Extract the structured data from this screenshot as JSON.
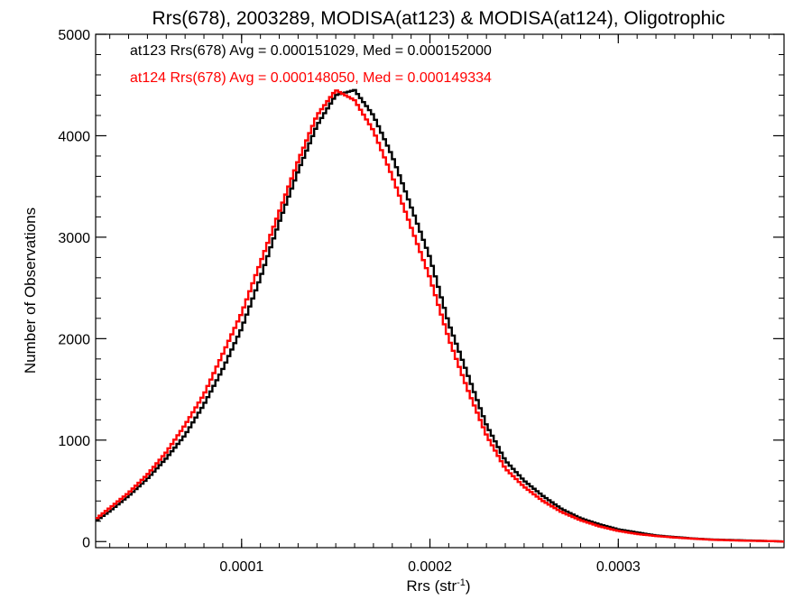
{
  "chart_data": {
    "type": "line",
    "title": "Rrs(678), 2003289, MODISA(at123) & MODISA(at124), Oligotrophic",
    "xlabel": "Rrs (str",
    "xlabel_superscript": "-1",
    "xlabel_close": ")",
    "ylabel": "Number of Observations",
    "xlim": [
      2.25e-05,
      0.000388
    ],
    "ylim": [
      -60,
      5000
    ],
    "x_ticks": [
      0.0001,
      0.0002,
      0.0003
    ],
    "x_tick_labels": [
      "0.0001",
      "0.0002",
      "0.0003"
    ],
    "y_ticks": [
      0,
      1000,
      2000,
      3000,
      4000,
      5000
    ],
    "y_tick_labels": [
      "0",
      "1000",
      "2000",
      "3000",
      "4000",
      "5000"
    ],
    "grid": false,
    "step": true,
    "annotations": [
      {
        "text": "at123 Rrs(678) Avg = 0.000151029, Med = 0.000152000",
        "color": "#000000"
      },
      {
        "text": "at124 Rrs(678) Avg = 0.000148050, Med = 0.000149334",
        "color": "#ff0000"
      }
    ],
    "series": [
      {
        "color": "#000000",
        "x": [
          2.25e-05,
          3e-05,
          4e-05,
          5e-05,
          6e-05,
          7e-05,
          8e-05,
          9e-05,
          0.0001,
          0.00011,
          0.00012,
          0.00013,
          0.00014,
          0.00015,
          0.00016,
          0.00017,
          0.00018,
          0.00019,
          0.0002,
          0.00021,
          0.00022,
          0.00023,
          0.00024,
          0.00025,
          0.00026,
          0.00027,
          0.00028,
          0.00029,
          0.0003,
          0.00031,
          0.00032,
          0.00033,
          0.00034,
          0.00035,
          0.00036,
          0.00037,
          0.00038,
          0.000388
        ],
        "y": [
          200,
          300,
          450,
          620,
          820,
          1050,
          1350,
          1700,
          2100,
          2600,
          3150,
          3650,
          4100,
          4400,
          4450,
          4200,
          3800,
          3300,
          2800,
          2150,
          1650,
          1150,
          800,
          600,
          450,
          320,
          230,
          170,
          120,
          90,
          60,
          45,
          30,
          20,
          15,
          10,
          5,
          0
        ]
      },
      {
        "color": "#ff0000",
        "x": [
          2.25e-05,
          3e-05,
          4e-05,
          5e-05,
          6e-05,
          7e-05,
          8e-05,
          9e-05,
          0.0001,
          0.00011,
          0.00012,
          0.00013,
          0.00014,
          0.00015,
          0.00016,
          0.00017,
          0.00018,
          0.00019,
          0.0002,
          0.00021,
          0.00022,
          0.00023,
          0.00024,
          0.00025,
          0.00026,
          0.00027,
          0.00028,
          0.00029,
          0.0003,
          0.00031,
          0.00032,
          0.00033,
          0.00034,
          0.00035,
          0.00036,
          0.00037,
          0.00038,
          0.000388
        ],
        "y": [
          220,
          330,
          480,
          660,
          880,
          1150,
          1450,
          1850,
          2250,
          2750,
          3250,
          3750,
          4200,
          4450,
          4350,
          4050,
          3600,
          3100,
          2600,
          2000,
          1500,
          1050,
          720,
          540,
          400,
          290,
          210,
          150,
          105,
          75,
          55,
          40,
          28,
          18,
          12,
          8,
          5,
          0
        ]
      }
    ]
  }
}
